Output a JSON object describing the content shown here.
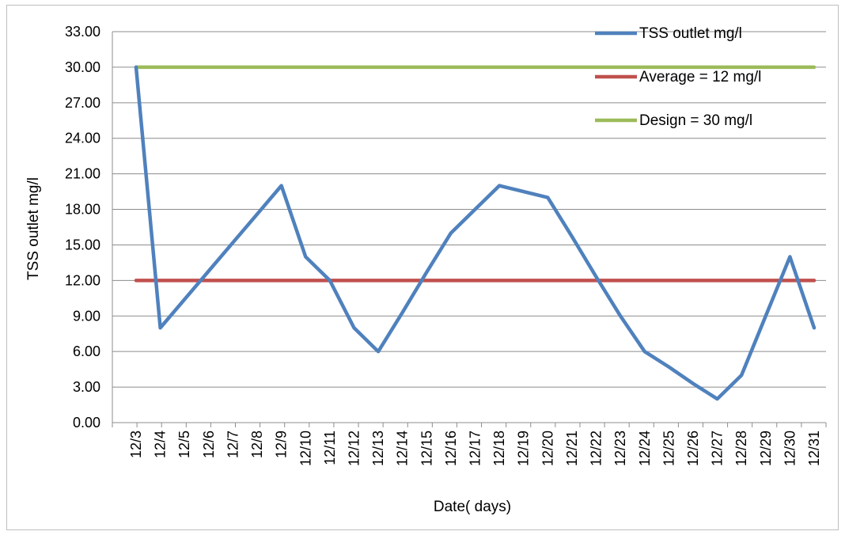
{
  "chart_data": {
    "type": "line",
    "xlabel": "Date( days)",
    "ylabel": "TSS outlet mg/l",
    "ylim": [
      0,
      33
    ],
    "yticks": [
      "0.00",
      "3.00",
      "6.00",
      "9.00",
      "12.00",
      "15.00",
      "18.00",
      "21.00",
      "24.00",
      "27.00",
      "30.00",
      "33.00"
    ],
    "grid": true,
    "legend_position": "top-right",
    "categories": [
      "12/3",
      "12/4",
      "12/5",
      "12/6",
      "12/7",
      "12/8",
      "12/9",
      "12/10",
      "12/11",
      "12/12",
      "12/13",
      "12/14",
      "12/15",
      "12/16",
      "12/17",
      "12/18",
      "12/19",
      "12/20",
      "12/21",
      "12/22",
      "12/23",
      "12/24",
      "12/25",
      "12/26",
      "12/27",
      "12/28",
      "12/29",
      "12/30",
      "12/31"
    ],
    "series": [
      {
        "name": "TSS outlet mg/l",
        "color": "#4f81bd",
        "values": [
          30,
          8,
          10.4,
          12.8,
          15.2,
          17.6,
          20,
          14,
          12,
          8,
          6,
          9.3,
          12.7,
          16,
          18,
          20,
          19.5,
          19,
          15.7,
          12.3,
          9,
          6,
          4.7,
          3.3,
          2,
          4,
          9,
          14,
          8
        ]
      },
      {
        "name": "Average = 12 mg/l",
        "color": "#c0504d",
        "values": [
          12,
          12,
          12,
          12,
          12,
          12,
          12,
          12,
          12,
          12,
          12,
          12,
          12,
          12,
          12,
          12,
          12,
          12,
          12,
          12,
          12,
          12,
          12,
          12,
          12,
          12,
          12,
          12,
          12
        ]
      },
      {
        "name": "Design = 30 mg/l",
        "color": "#9bbb59",
        "values": [
          30,
          30,
          30,
          30,
          30,
          30,
          30,
          30,
          30,
          30,
          30,
          30,
          30,
          30,
          30,
          30,
          30,
          30,
          30,
          30,
          30,
          30,
          30,
          30,
          30,
          30,
          30,
          30,
          30
        ]
      }
    ]
  }
}
